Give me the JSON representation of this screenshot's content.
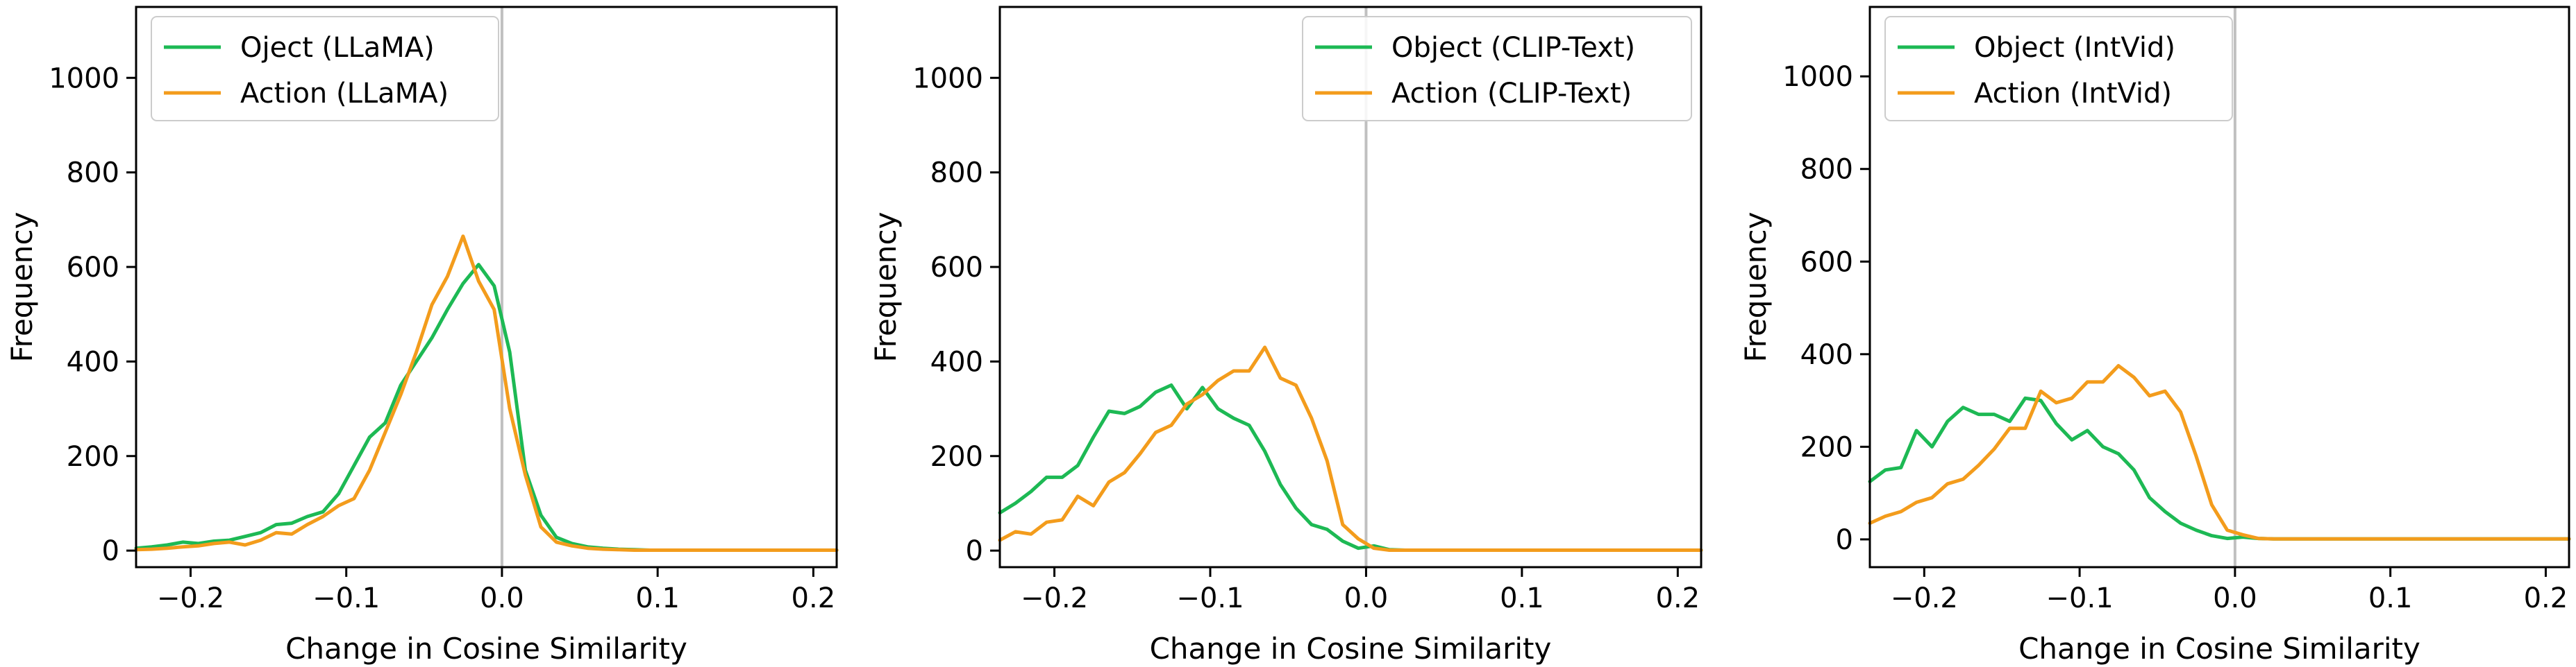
{
  "chart_data": [
    {
      "type": "line",
      "xlabel": "Change in Cosine Similarity",
      "ylabel": "Frequency",
      "xlim": [
        -0.235,
        0.215
      ],
      "ylim": [
        -35,
        1150
      ],
      "xticks": [
        -0.2,
        -0.1,
        0.0,
        0.1,
        0.2
      ],
      "yticks": [
        0,
        200,
        400,
        600,
        800,
        1000
      ],
      "xtick_labels": [
        "−0.2",
        "−0.1",
        "0.0",
        "0.1",
        "0.2"
      ],
      "ytick_labels": [
        "0",
        "200",
        "400",
        "600",
        "800",
        "1000"
      ],
      "vline_x": 0.0,
      "legend_position": "upper-left",
      "grid": false,
      "series": [
        {
          "name": "Oject (LLaMA)",
          "color": "#1db954",
          "x": [
            -0.235,
            -0.225,
            -0.215,
            -0.205,
            -0.195,
            -0.185,
            -0.175,
            -0.165,
            -0.155,
            -0.145,
            -0.135,
            -0.125,
            -0.115,
            -0.105,
            -0.095,
            -0.085,
            -0.075,
            -0.065,
            -0.055,
            -0.045,
            -0.035,
            -0.025,
            -0.015,
            -0.005,
            0.005,
            0.015,
            0.025,
            0.035,
            0.045,
            0.055,
            0.065,
            0.075,
            0.085,
            0.095,
            0.105,
            0.115,
            0.125,
            0.135,
            0.145,
            0.155,
            0.165,
            0.175,
            0.185,
            0.195,
            0.205,
            0.215
          ],
          "y": [
            5,
            8,
            12,
            18,
            15,
            20,
            22,
            30,
            38,
            55,
            58,
            72,
            82,
            120,
            180,
            240,
            270,
            350,
            400,
            450,
            510,
            565,
            605,
            560,
            420,
            170,
            75,
            28,
            15,
            8,
            5,
            3,
            2,
            1,
            1,
            1,
            1,
            1,
            1,
            1,
            1,
            1,
            1,
            1,
            1,
            1
          ]
        },
        {
          "name": "Action (LLaMA)",
          "color": "#f39c1c",
          "x": [
            -0.235,
            -0.225,
            -0.215,
            -0.205,
            -0.195,
            -0.185,
            -0.175,
            -0.165,
            -0.155,
            -0.145,
            -0.135,
            -0.125,
            -0.115,
            -0.105,
            -0.095,
            -0.085,
            -0.075,
            -0.065,
            -0.055,
            -0.045,
            -0.035,
            -0.025,
            -0.015,
            -0.005,
            0.005,
            0.015,
            0.025,
            0.035,
            0.045,
            0.055,
            0.065,
            0.075,
            0.085,
            0.095,
            0.105,
            0.115,
            0.125,
            0.135,
            0.145,
            0.155,
            0.165,
            0.175,
            0.185,
            0.195,
            0.205,
            0.215
          ],
          "y": [
            2,
            3,
            5,
            8,
            10,
            15,
            18,
            12,
            22,
            38,
            35,
            55,
            72,
            95,
            110,
            170,
            250,
            330,
            420,
            520,
            580,
            665,
            570,
            510,
            300,
            160,
            50,
            18,
            10,
            5,
            3,
            2,
            1,
            1,
            1,
            1,
            1,
            1,
            1,
            1,
            1,
            1,
            1,
            1,
            1,
            1
          ]
        }
      ]
    },
    {
      "type": "line",
      "xlabel": "Change in Cosine Similarity",
      "ylabel": "Frequency",
      "xlim": [
        -0.235,
        0.215
      ],
      "ylim": [
        -35,
        1150
      ],
      "xticks": [
        -0.2,
        -0.1,
        0.0,
        0.1,
        0.2
      ],
      "yticks": [
        0,
        200,
        400,
        600,
        800,
        1000
      ],
      "xtick_labels": [
        "−0.2",
        "−0.1",
        "0.0",
        "0.1",
        "0.2"
      ],
      "ytick_labels": [
        "0",
        "200",
        "400",
        "600",
        "800",
        "1000"
      ],
      "vline_x": 0.0,
      "legend_position": "upper-right",
      "grid": false,
      "series": [
        {
          "name": "Object (CLIP-Text)",
          "color": "#1db954",
          "x": [
            -0.235,
            -0.225,
            -0.215,
            -0.205,
            -0.195,
            -0.185,
            -0.175,
            -0.165,
            -0.155,
            -0.145,
            -0.135,
            -0.125,
            -0.115,
            -0.105,
            -0.095,
            -0.085,
            -0.075,
            -0.065,
            -0.055,
            -0.045,
            -0.035,
            -0.025,
            -0.015,
            -0.005,
            0.005,
            0.015,
            0.025,
            0.035,
            0.045,
            0.055,
            0.065,
            0.075,
            0.085,
            0.095,
            0.105,
            0.115,
            0.125,
            0.135,
            0.145,
            0.155,
            0.165,
            0.175,
            0.185,
            0.195,
            0.205,
            0.215
          ],
          "y": [
            80,
            100,
            125,
            155,
            155,
            180,
            240,
            295,
            290,
            305,
            335,
            350,
            300,
            345,
            300,
            280,
            265,
            210,
            140,
            90,
            55,
            45,
            20,
            5,
            10,
            2,
            1,
            1,
            1,
            1,
            1,
            1,
            1,
            1,
            1,
            1,
            1,
            1,
            1,
            1,
            1,
            1,
            1,
            1,
            1,
            1
          ]
        },
        {
          "name": "Action (CLIP-Text)",
          "color": "#f39c1c",
          "x": [
            -0.235,
            -0.225,
            -0.215,
            -0.205,
            -0.195,
            -0.185,
            -0.175,
            -0.165,
            -0.155,
            -0.145,
            -0.135,
            -0.125,
            -0.115,
            -0.105,
            -0.095,
            -0.085,
            -0.075,
            -0.065,
            -0.055,
            -0.045,
            -0.035,
            -0.025,
            -0.015,
            -0.005,
            0.005,
            0.015,
            0.025,
            0.035,
            0.045,
            0.055,
            0.065,
            0.075,
            0.085,
            0.095,
            0.105,
            0.115,
            0.125,
            0.135,
            0.145,
            0.155,
            0.165,
            0.175,
            0.185,
            0.195,
            0.205,
            0.215
          ],
          "y": [
            22,
            40,
            35,
            60,
            65,
            115,
            95,
            145,
            165,
            205,
            250,
            265,
            310,
            330,
            360,
            380,
            380,
            430,
            365,
            350,
            280,
            190,
            55,
            25,
            5,
            1,
            1,
            1,
            1,
            1,
            1,
            1,
            1,
            1,
            1,
            1,
            1,
            1,
            1,
            1,
            1,
            1,
            1,
            1,
            1,
            1
          ]
        }
      ]
    },
    {
      "type": "line",
      "xlabel": "Change in Cosine Similarity",
      "ylabel": "Frequency",
      "xlim": [
        -0.235,
        0.215
      ],
      "ylim": [
        -60,
        1150
      ],
      "xticks": [
        -0.2,
        -0.1,
        0.0,
        0.1,
        0.2
      ],
      "yticks": [
        0,
        200,
        400,
        600,
        800,
        1000
      ],
      "xtick_labels": [
        "−0.2",
        "−0.1",
        "0.0",
        "0.1",
        "0.2"
      ],
      "ytick_labels": [
        "0",
        "200",
        "400",
        "600",
        "800",
        "1000"
      ],
      "vline_x": 0.0,
      "legend_position": "upper-left",
      "grid": false,
      "series": [
        {
          "name": "Object (IntVid)",
          "color": "#1db954",
          "x": [
            -0.235,
            -0.225,
            -0.215,
            -0.205,
            -0.195,
            -0.185,
            -0.175,
            -0.165,
            -0.155,
            -0.145,
            -0.135,
            -0.125,
            -0.115,
            -0.105,
            -0.095,
            -0.085,
            -0.075,
            -0.065,
            -0.055,
            -0.045,
            -0.035,
            -0.025,
            -0.015,
            -0.005,
            0.005,
            0.015,
            0.025,
            0.035,
            0.045,
            0.055,
            0.065,
            0.075,
            0.085,
            0.095,
            0.105,
            0.115,
            0.125,
            0.135,
            0.145,
            0.155,
            0.165,
            0.175,
            0.185,
            0.195,
            0.205,
            0.215
          ],
          "y": [
            125,
            150,
            155,
            235,
            200,
            255,
            285,
            270,
            270,
            255,
            305,
            300,
            250,
            215,
            235,
            200,
            185,
            150,
            90,
            60,
            35,
            20,
            8,
            2,
            5,
            2,
            1,
            1,
            1,
            1,
            1,
            1,
            1,
            1,
            1,
            1,
            1,
            1,
            1,
            1,
            1,
            1,
            1,
            1,
            1,
            1
          ]
        },
        {
          "name": "Action (IntVid)",
          "color": "#f39c1c",
          "x": [
            -0.235,
            -0.225,
            -0.215,
            -0.205,
            -0.195,
            -0.185,
            -0.175,
            -0.165,
            -0.155,
            -0.145,
            -0.135,
            -0.125,
            -0.115,
            -0.105,
            -0.095,
            -0.085,
            -0.075,
            -0.065,
            -0.055,
            -0.045,
            -0.035,
            -0.025,
            -0.015,
            -0.005,
            0.005,
            0.015,
            0.025,
            0.035,
            0.045,
            0.055,
            0.065,
            0.075,
            0.085,
            0.095,
            0.105,
            0.115,
            0.125,
            0.135,
            0.145,
            0.155,
            0.165,
            0.175,
            0.185,
            0.195,
            0.205,
            0.215
          ],
          "y": [
            35,
            50,
            60,
            80,
            90,
            120,
            130,
            160,
            195,
            240,
            240,
            320,
            295,
            305,
            340,
            340,
            375,
            350,
            310,
            320,
            275,
            180,
            75,
            20,
            10,
            2,
            1,
            1,
            1,
            1,
            1,
            1,
            1,
            1,
            1,
            1,
            1,
            1,
            1,
            1,
            1,
            1,
            1,
            1,
            1,
            1
          ]
        }
      ]
    }
  ]
}
